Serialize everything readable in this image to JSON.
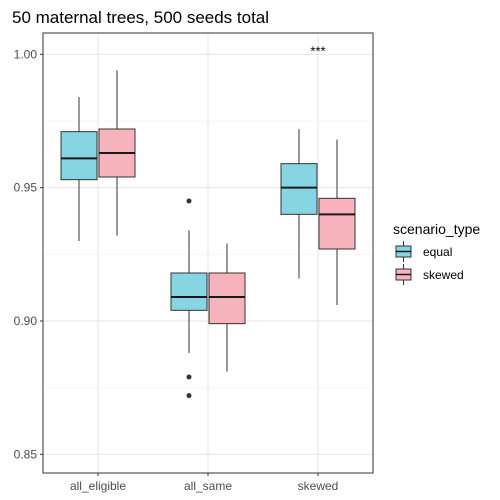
{
  "chart_data": {
    "type": "boxplot",
    "title": "50 maternal trees, 500 seeds total",
    "xlabel": "",
    "ylabel": "",
    "categories": [
      "all_eligible",
      "all_same",
      "skewed"
    ],
    "ylim": [
      0.843,
      1.008
    ],
    "yticks": [
      0.85,
      0.9,
      0.95,
      1.0
    ],
    "ytick_labels": [
      "0.85",
      "0.90",
      "0.95",
      "1.00"
    ],
    "grid": true,
    "legend": {
      "title": "scenario_type",
      "placement": "right"
    },
    "series": [
      {
        "name": "equal",
        "color": "#87d5e3",
        "boxes": [
          {
            "category": "all_eligible",
            "whisker_low": 0.93,
            "q1": 0.953,
            "median": 0.961,
            "q3": 0.971,
            "whisker_high": 0.984,
            "outliers": []
          },
          {
            "category": "all_same",
            "whisker_low": 0.888,
            "q1": 0.904,
            "median": 0.909,
            "q3": 0.918,
            "whisker_high": 0.934,
            "outliers": [
              0.945,
              0.879,
              0.872
            ]
          },
          {
            "category": "skewed",
            "whisker_low": 0.916,
            "q1": 0.94,
            "median": 0.95,
            "q3": 0.959,
            "whisker_high": 0.972,
            "outliers": []
          }
        ]
      },
      {
        "name": "skewed",
        "color": "#f7b3bb",
        "boxes": [
          {
            "category": "all_eligible",
            "whisker_low": 0.932,
            "q1": 0.954,
            "median": 0.963,
            "q3": 0.972,
            "whisker_high": 0.994,
            "outliers": []
          },
          {
            "category": "all_same",
            "whisker_low": 0.881,
            "q1": 0.899,
            "median": 0.909,
            "q3": 0.918,
            "whisker_high": 0.929,
            "outliers": []
          },
          {
            "category": "skewed",
            "whisker_low": 0.906,
            "q1": 0.927,
            "median": 0.94,
            "q3": 0.946,
            "whisker_high": 0.968,
            "outliers": []
          }
        ]
      }
    ],
    "annotations": [
      {
        "text": "***",
        "category": "skewed",
        "y": 1.001
      }
    ]
  }
}
